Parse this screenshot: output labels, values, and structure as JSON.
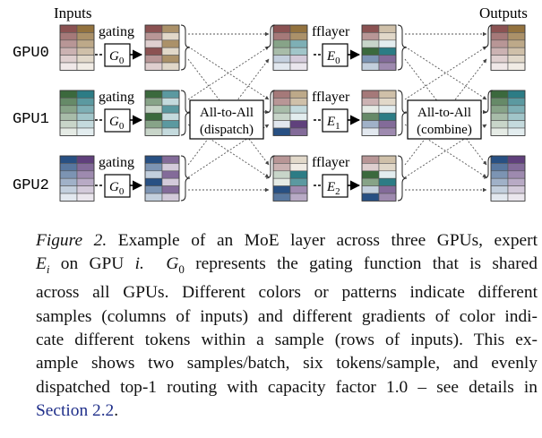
{
  "diagram": {
    "header_inputs": "Inputs",
    "header_outputs": "Outputs",
    "gpus": [
      {
        "label": "GPU0",
        "expert": "E",
        "expert_sub": "0"
      },
      {
        "label": "GPU1",
        "expert": "E",
        "expert_sub": "1"
      },
      {
        "label": "GPU2",
        "expert": "E",
        "expert_sub": "2"
      }
    ],
    "gating_label": "gating",
    "gate_fn": "G",
    "gate_sub": "0",
    "fflayer_label": "fflayer",
    "all_to_all_dispatch": [
      "All-to-All",
      "(dispatch)"
    ],
    "all_to_all_combine": [
      "All-to-All",
      "(combine)"
    ],
    "colors": {
      "gpu0_a": "#e57373",
      "gpu0_b": "#f5b24a",
      "gpu1_a": "#43a047",
      "gpu1_b": "#26c6da",
      "gpu2_a": "#1e6fd6",
      "gpu2_b": "#8e4ec6"
    }
  },
  "caption": {
    "figure_label": "Figure 2.",
    "line1": "Example of an MoE layer across three GPUs, expert",
    "math_E": "E",
    "math_i": "i",
    "on_gpu": "on GPU",
    "gpu_i": "i.",
    "math_G": "G",
    "math_G_sub": "0",
    "line2_rest": "represents the gating function that is shared",
    "line3": "across all GPUs.  Different colors or patterns indicate different",
    "line4": "samples (columns of inputs) and different gradients of color indi-",
    "line5": "cate different tokens within a sample (rows of inputs).  This ex-",
    "line6": "ample shows two samples/batch, six tokens/sample, and evenly",
    "line7": "dispatched top-1 routing with capacity factor 1.0 – see details in",
    "link": "Section 2.2",
    "link_end": "."
  }
}
